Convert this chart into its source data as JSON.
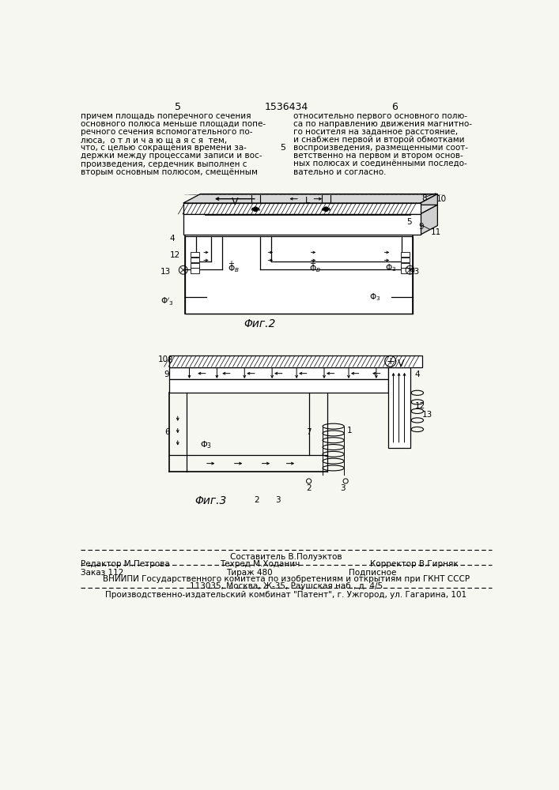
{
  "bg_color": "#f7f7f2",
  "page_width": 7.07,
  "page_height": 10.0,
  "header_num": "1536434",
  "header_page_left": "5",
  "header_page_right": "6",
  "text_left_col": [
    "причем площадь поперечного сечения",
    "основного полюса меньше площади попе-",
    "речного сечения вспомогательного по-",
    "люса,  о т л и ч а ю щ а я с я  тем,",
    "что, с целью сокращения времени за-",
    "держки между процессами записи и вос-",
    "произведения, сердечник выполнен с",
    "вторым основным полюсом, смещённым"
  ],
  "text_right_col": [
    "относительно первого основного полю-",
    "са по направлению движения магнитно-",
    "го носителя на заданное расстояние,",
    "и снабжен первой и второй обмотками",
    "воспроизведения, размещенными соот-",
    "ветственно на первом и втором основ-",
    "ных полюсах и соединёнными последо-",
    "вательно и согласно."
  ],
  "fig1_caption": "Φиг.2",
  "fig2_caption": "Φиг.3",
  "footer_composer": "Составитель В.Полуэктов",
  "footer_editor": "Редактор М.Петрова",
  "footer_techred": "Техред М.Ходанич",
  "footer_corrector": "Корректор В.Гирняк",
  "footer_order": "Заказ 112",
  "footer_tirazh": "Тираж 480",
  "footer_podpisnoe": "Подписное",
  "footer_vnipi": "ВНИИПИ Государственного комитета по изобретениям и открытиям при ГКНТ СССР",
  "footer_address": "113035, Москва, Ж-35, Раушская наб., д. 4/5",
  "footer_combine": "Производственно-издательский комбинат \"Патент\", г. Ужгород, ул. Гагарина, 101"
}
